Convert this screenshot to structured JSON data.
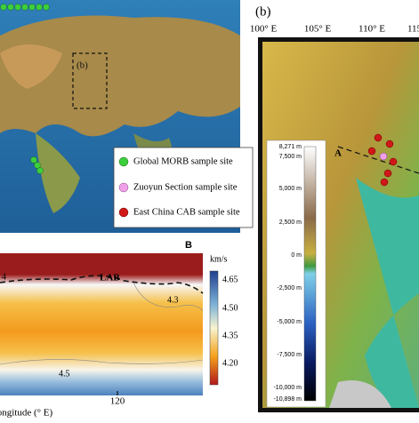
{
  "panel_a": {
    "inset_label": "(b)",
    "legend": [
      "Global MORB sample site",
      "Zuoyun Section sample site",
      "East China CAB sample site"
    ]
  },
  "panel_b_section": {
    "label": "B",
    "unit": "km/s",
    "lab_label": "LAB",
    "contour_labels": [
      "4",
      "4.3",
      "4.5"
    ],
    "x_tick": "120",
    "x_axis_label": "Longitude (° E)",
    "colorbar_ticks": [
      "4.65",
      "4.50",
      "4.35",
      "4.20"
    ]
  },
  "panel_map_b": {
    "label": "(b)",
    "lon_ticks": [
      "100° E",
      "105° E",
      "110° E",
      "115"
    ],
    "profile_label": "A",
    "elevation_ticks": [
      "8,271 m",
      "7,500 m",
      "5,000 m",
      "2,500 m",
      "0 m",
      "-2,500 m",
      "-5,000 m",
      "-7,500 m",
      "-10,000 m",
      "-10,898 m"
    ]
  }
}
